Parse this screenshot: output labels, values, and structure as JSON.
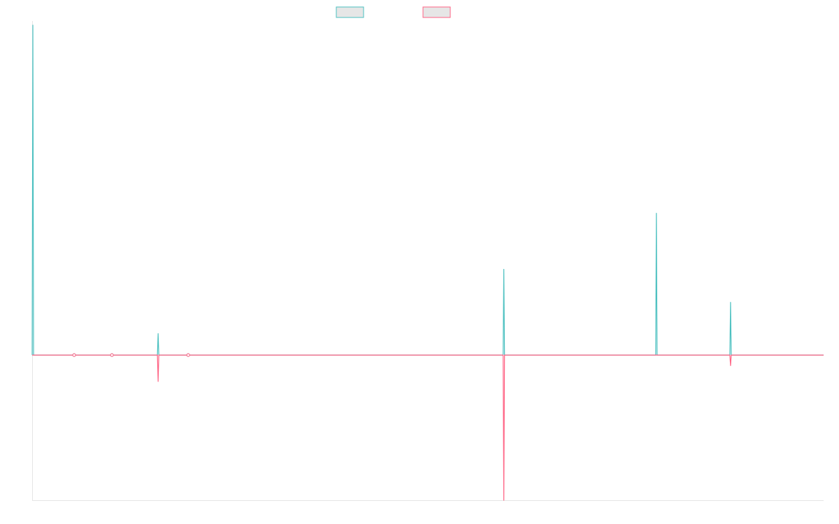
{
  "chart_data": {
    "type": "line",
    "title": "",
    "xlabel": "",
    "ylabel": "",
    "grid": false,
    "legend_position": "top-center",
    "x": [
      0,
      1,
      2,
      3,
      4,
      5,
      6,
      7,
      8,
      9,
      10,
      11,
      12,
      13,
      14,
      15,
      16,
      17,
      18,
      19,
      20,
      21,
      22,
      23,
      24,
      25,
      26,
      27,
      28,
      29,
      30,
      31,
      32,
      33,
      34,
      35,
      36,
      37,
      38,
      39,
      40,
      41,
      42,
      43,
      44,
      45,
      46,
      47,
      48,
      49,
      50,
      51,
      52,
      53,
      54,
      55,
      56,
      57,
      58,
      59,
      60,
      61,
      62,
      63,
      64,
      65,
      66,
      67,
      68,
      69,
      70,
      71,
      72,
      73,
      74,
      75,
      76,
      77,
      78,
      79,
      80,
      81,
      82,
      83,
      84,
      85,
      86,
      87,
      88,
      89,
      90,
      91,
      92,
      93,
      94,
      95,
      96,
      97,
      98,
      99,
      100,
      101,
      102,
      103,
      104,
      105,
      106,
      107,
      108,
      109,
      110,
      111,
      112,
      113,
      114,
      115,
      116,
      117,
      118,
      119,
      120,
      121,
      122,
      123,
      124,
      125,
      126,
      127,
      128,
      129,
      130,
      131,
      132,
      133,
      134,
      135,
      136,
      137,
      138,
      139,
      140,
      141,
      142,
      143,
      144,
      145,
      146,
      147,
      148,
      149,
      150,
      151,
      152,
      153,
      154,
      155,
      156,
      157,
      158,
      159,
      160,
      161,
      162,
      163,
      164,
      165,
      166,
      167,
      168,
      169,
      170,
      171,
      172,
      173,
      174,
      175,
      176,
      177,
      178,
      179,
      180,
      181,
      182,
      183,
      184,
      185,
      186,
      187,
      188,
      189,
      190,
      191,
      192,
      193,
      194,
      195,
      196,
      197,
      198,
      199,
      200,
      201,
      202,
      203,
      204,
      205,
      206,
      207,
      208,
      209,
      210,
      211,
      212,
      213,
      214,
      215,
      216,
      217,
      218,
      219,
      220,
      221,
      222,
      223,
      224,
      225,
      226,
      227,
      228,
      229,
      230,
      231,
      232,
      233,
      234,
      235,
      236,
      237,
      238,
      239,
      240,
      241,
      242,
      243,
      244,
      245,
      246,
      247,
      248,
      249,
      250,
      251,
      252,
      253,
      254,
      255,
      256,
      257,
      258,
      259,
      260,
      261,
      262,
      263,
      264,
      265,
      266,
      267,
      268,
      269,
      270,
      271,
      272,
      273,
      274,
      275,
      276,
      277,
      278,
      279,
      280,
      281,
      282,
      283,
      284,
      285,
      286,
      287,
      288,
      289,
      290,
      291,
      292,
      293,
      294,
      295,
      296,
      297,
      298,
      299,
      300,
      301,
      302,
      303,
      304,
      305,
      306,
      307,
      308,
      309,
      310,
      311,
      312,
      313,
      314,
      315,
      316,
      317,
      318,
      319,
      320,
      321,
      322,
      323,
      324,
      325,
      326,
      327,
      328,
      329,
      330,
      331,
      332,
      333,
      334,
      335,
      336,
      337,
      338,
      339,
      340,
      341,
      342,
      343,
      344,
      345,
      346,
      347,
      348,
      349,
      350,
      351,
      352,
      353,
      354,
      355,
      356,
      357,
      358,
      359,
      360,
      361,
      362,
      363,
      364,
      365,
      366,
      367,
      368,
      369,
      370,
      371,
      372,
      373,
      374,
      375,
      376,
      377,
      378,
      379,
      380,
      381,
      382,
      383,
      384,
      385,
      386,
      387,
      388,
      389,
      390,
      391,
      392,
      393,
      394,
      395,
      396,
      397,
      398,
      399,
      400,
      401,
      402,
      403,
      404,
      405,
      406,
      407,
      408,
      409,
      410,
      411,
      412,
      413,
      414,
      415,
      416,
      417,
      418,
      419,
      420,
      421,
      422,
      423,
      424,
      425,
      426,
      427,
      428,
      429,
      430,
      431,
      432,
      433,
      434,
      435,
      436,
      437,
      438,
      439,
      440,
      441,
      442,
      443,
      444,
      445,
      446,
      447,
      448,
      449,
      450,
      451,
      452,
      453,
      454,
      455,
      456,
      457,
      458,
      459,
      460,
      461,
      462,
      463,
      464,
      465,
      466,
      467,
      468,
      469,
      470,
      471,
      472,
      473,
      474,
      475,
      476,
      477,
      478,
      479,
      480,
      481,
      482,
      483,
      484,
      485,
      486,
      487,
      488,
      489,
      490,
      491,
      492,
      493,
      494,
      495,
      496,
      497,
      498,
      499,
      500,
      501,
      502,
      503,
      504,
      505,
      506,
      507,
      508,
      509,
      510,
      511,
      512,
      513,
      514,
      515,
      516,
      517,
      518,
      519,
      520,
      521,
      522,
      523,
      524,
      525,
      526,
      527,
      528,
      529,
      530,
      531,
      532,
      533,
      534,
      535,
      536,
      537,
      538,
      539,
      540,
      541,
      542,
      543,
      544,
      545,
      546,
      547,
      548,
      549,
      550,
      551,
      552,
      553,
      554,
      555,
      556,
      557,
      558,
      559,
      560,
      561,
      562,
      563,
      564,
      565,
      566,
      567,
      568,
      569,
      570,
      571,
      572,
      573,
      574,
      575,
      576,
      577,
      578,
      579,
      580,
      581,
      582,
      583,
      584,
      585,
      586,
      587,
      588,
      589,
      590,
      591,
      592,
      593,
      594,
      595,
      596,
      597,
      598,
      599,
      600,
      601,
      602,
      603,
      604,
      605,
      606,
      607,
      608,
      609,
      610,
      611,
      612,
      613,
      614,
      615,
      616,
      617,
      618,
      619,
      620,
      621,
      622,
      623,
      624,
      625,
      626,
      627,
      628,
      629,
      630,
      631,
      632,
      633,
      634,
      635,
      636,
      637,
      638,
      639,
      640,
      641,
      642,
      643,
      644,
      645,
      646,
      647,
      648,
      649,
      650,
      651,
      652,
      653,
      654,
      655,
      656,
      657,
      658,
      659,
      660,
      661,
      662,
      663,
      664,
      665,
      666,
      667,
      668,
      669,
      670,
      671,
      672,
      673,
      674,
      675,
      676,
      677,
      678,
      679,
      680,
      681,
      682,
      683,
      684,
      685,
      686,
      687,
      688,
      689,
      690,
      691,
      692,
      693,
      694,
      695,
      696,
      697,
      698,
      699,
      700,
      701,
      702,
      703,
      704,
      705,
      706,
      707,
      708,
      709,
      710,
      711,
      712,
      713,
      714,
      715,
      716,
      717,
      718,
      719,
      720,
      721,
      722,
      723,
      724,
      725,
      726,
      727,
      728,
      729,
      730,
      731,
      732,
      733,
      734,
      735,
      736,
      737,
      738,
      739,
      740,
      741,
      742,
      743,
      744,
      745,
      746,
      747,
      748,
      749,
      750,
      751,
      752,
      753,
      754,
      755,
      756,
      757,
      758,
      759,
      760,
      761,
      762,
      763,
      764,
      765,
      766,
      767,
      768,
      769,
      770,
      771,
      772,
      773,
      774,
      775,
      776,
      777,
      778,
      779,
      780,
      781,
      782,
      783,
      784,
      785,
      786,
      787,
      788,
      789,
      790,
      791,
      792,
      793,
      794,
      795,
      796,
      797,
      798,
      799,
      800,
      801,
      802,
      803,
      804,
      805,
      806,
      807,
      808,
      809,
      810,
      811,
      812,
      813,
      814,
      815,
      816,
      817,
      818,
      819,
      820,
      821,
      822,
      823,
      824,
      825,
      826,
      827,
      828,
      829,
      830,
      831,
      832,
      833,
      834,
      835,
      836,
      837,
      838,
      839,
      840,
      841,
      842,
      843,
      844,
      845,
      846,
      847,
      848,
      849,
      850,
      851,
      852,
      853,
      854,
      855,
      856,
      857,
      858,
      859,
      860,
      861,
      862,
      863,
      864,
      865,
      866,
      867,
      868,
      869,
      870,
      871,
      872,
      873,
      874,
      875,
      876,
      877,
      878,
      879,
      880,
      881,
      882,
      883,
      884,
      885,
      886,
      887,
      888,
      889,
      890,
      891,
      892,
      893,
      894,
      895,
      896,
      897,
      898,
      899,
      900,
      901,
      902,
      903,
      904,
      905,
      906,
      907,
      908,
      909,
      910,
      911,
      912,
      913,
      914,
      915,
      916,
      917,
      918,
      919,
      920,
      921,
      922,
      923,
      924,
      925,
      926,
      927,
      928,
      929,
      930,
      931,
      932,
      933,
      934,
      935,
      936,
      937,
      938,
      939,
      940,
      941,
      942,
      943,
      944,
      945,
      946,
      947,
      948,
      949,
      950,
      951,
      952,
      953,
      954,
      955,
      956,
      957,
      958,
      959,
      960,
      961,
      962,
      963,
      964,
      965,
      966,
      967,
      968,
      969,
      970,
      971,
      972,
      973,
      974,
      975,
      976,
      977,
      978,
      979,
      980,
      981,
      982,
      983,
      984,
      985,
      986,
      987,
      988,
      989,
      990,
      991,
      992,
      993,
      994,
      995,
      996,
      997,
      998,
      999,
      1000,
      1001,
      1002,
      1003,
      1004,
      1005,
      1006,
      1007,
      1008,
      1009,
      1010,
      1011,
      1012,
      1013,
      1014,
      1015,
      1016,
      1017,
      1018,
      1019,
      1020,
      1021,
      1022,
      1023,
      1024,
      1025,
      1026,
      1027,
      1028,
      1029,
      1030,
      1031,
      1032,
      1033,
      1034,
      1035,
      1036,
      1037,
      1038,
      1039,
      1040,
      1041,
      1042,
      1043,
      1044,
      1045,
      1046,
      1047,
      1048,
      1049,
      1050,
      1051,
      1052,
      1053,
      1054,
      1055,
      1056,
      1057,
      1058,
      1059,
      1060,
      1061,
      1062,
      1063,
      1064,
      1065,
      1066,
      1067,
      1068,
      1069,
      1070,
      1071,
      1072,
      1073,
      1074,
      1075,
      1076,
      1077,
      1078,
      1079,
      1080,
      1081,
      1082,
      1083,
      1084,
      1085,
      1086,
      1087,
      1088,
      1089,
      1090,
      1091,
      1092,
      1093,
      1094,
      1095,
      1096,
      1097,
      1098,
      1099,
      1100,
      1101,
      1102,
      1103,
      1104,
      1105,
      1106,
      1107,
      1108,
      1109,
      1110,
      1111,
      1112,
      1113,
      1114,
      1115,
      1116,
      1117,
      1118,
      1119,
      1120,
      1121,
      1122,
      1123,
      1124,
      1125,
      1126,
      1127,
      1128,
      1129,
      1130,
      1131
    ],
    "ylim": [
      -0.44,
      1
    ],
    "series": [
      {
        "name": "",
        "color": "#4bc0c0",
        "sparse": [
          [
            1,
            1.0
          ],
          [
            60,
            0.0
          ],
          [
            114,
            0.0
          ],
          [
            180,
            0.065
          ],
          [
            223,
            0.0
          ],
          [
            674,
            0.26
          ],
          [
            892,
            0.43
          ],
          [
            998,
            0.16
          ]
        ]
      },
      {
        "name": "",
        "color": "#ff6384",
        "sparse": [
          [
            60,
            0.0
          ],
          [
            114,
            0.0
          ],
          [
            180,
            -0.08
          ],
          [
            223,
            0.0
          ],
          [
            674,
            -0.44
          ],
          [
            998,
            -0.032
          ]
        ]
      }
    ]
  }
}
